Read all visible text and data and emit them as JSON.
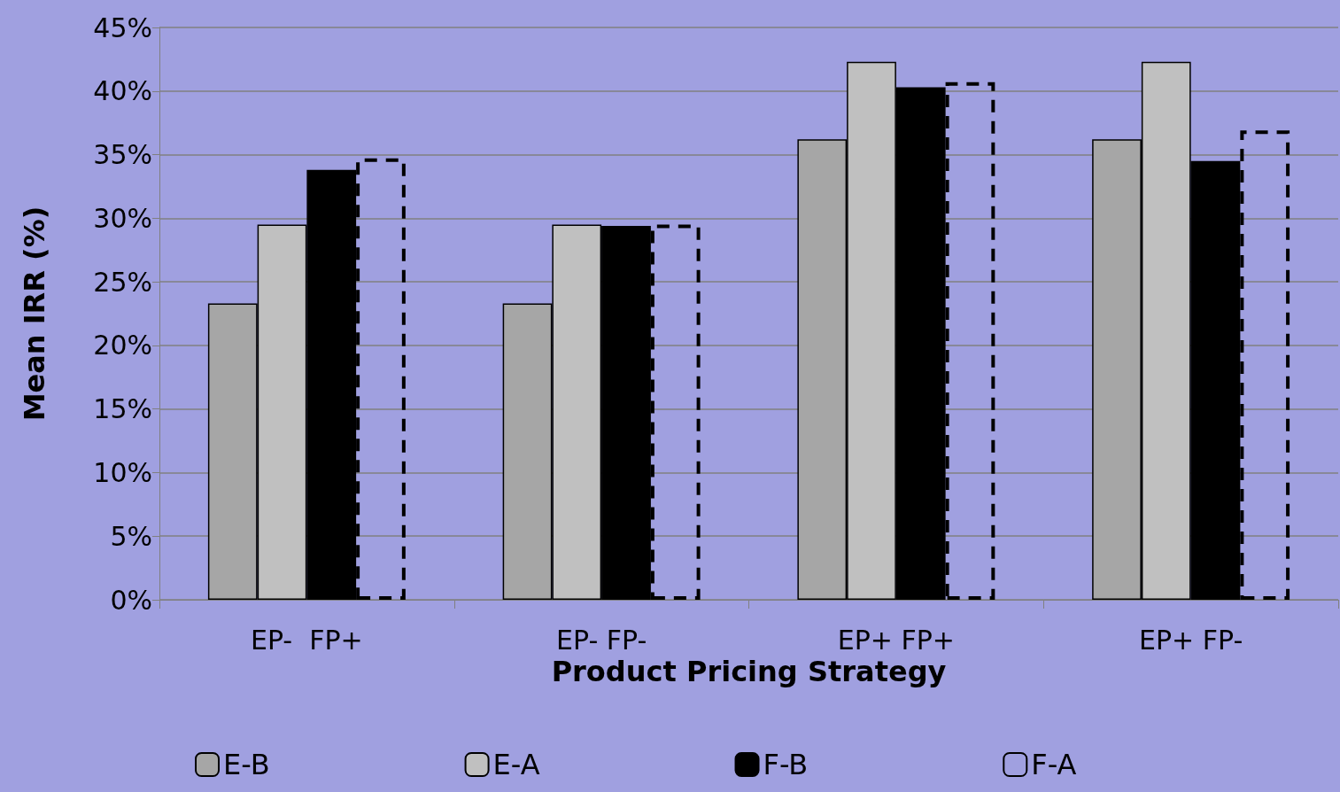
{
  "chart_data": {
    "type": "bar",
    "xlabel": "Product Pricing Strategy",
    "ylabel": "Mean IRR (%)",
    "categories": [
      "EP-  FP+",
      "EP- FP-",
      "EP+ FP+",
      "EP+ FP-"
    ],
    "series": [
      {
        "name": "E-B",
        "color": "#a6a6a6",
        "values": [
          23.3,
          23.3,
          36.2,
          36.2
        ]
      },
      {
        "name": "E-A",
        "color": "#c0c0c0",
        "values": [
          29.5,
          29.5,
          42.3,
          42.3
        ]
      },
      {
        "name": "F-B",
        "color": "#000000",
        "values": [
          33.8,
          29.4,
          40.3,
          34.5
        ]
      },
      {
        "name": "F-A",
        "color": "#000000",
        "line_style": "dashed",
        "values": [
          34.7,
          29.5,
          40.7,
          36.9
        ]
      }
    ],
    "ylim": [
      0,
      45
    ],
    "yticks": [
      {
        "value": 0,
        "label": "0%"
      },
      {
        "value": 5,
        "label": "5%"
      },
      {
        "value": 10,
        "label": "10%"
      },
      {
        "value": 15,
        "label": "15%"
      },
      {
        "value": 20,
        "label": "20%"
      },
      {
        "value": 25,
        "label": "25%"
      },
      {
        "value": 30,
        "label": "30%"
      },
      {
        "value": 35,
        "label": "35%"
      },
      {
        "value": 40,
        "label": "40%"
      },
      {
        "value": 45,
        "label": "45%"
      }
    ],
    "grid": "y",
    "legend": "bottom"
  }
}
